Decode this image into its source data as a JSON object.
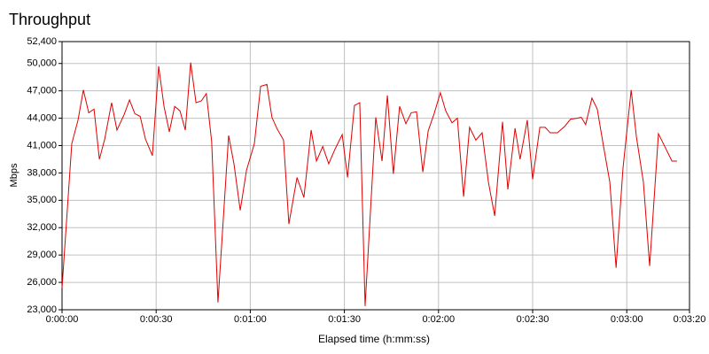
{
  "chart_data": {
    "type": "line",
    "title": "Throughput",
    "x_label": "Elapsed time (h:mm:ss)",
    "y_label": "Mbps",
    "x": [
      0,
      3.1,
      5.1,
      6.8,
      8.5,
      10.2,
      11.9,
      13.6,
      15.8,
      17.5,
      19.8,
      21.5,
      23.2,
      24.9,
      26.6,
      28.8,
      30.8,
      32.5,
      34.2,
      35.9,
      37.6,
      39.3,
      41.0,
      42.7,
      44.4,
      46.0,
      47.7,
      49.7,
      53.1,
      54.8,
      56.8,
      58.8,
      61.3,
      63.3,
      65.3,
      66.9,
      68.6,
      70.6,
      72.3,
      74.9,
      77.1,
      79.4,
      81.1,
      83.1,
      85.0,
      87.0,
      89.3,
      91.0,
      93.2,
      94.9,
      96.6,
      100.0,
      102.0,
      103.7,
      105.6,
      107.6,
      109.6,
      111.3,
      113.0,
      115.0,
      116.7,
      118.6,
      120.6,
      122.3,
      124.3,
      126.0,
      128.0,
      129.9,
      131.9,
      133.9,
      135.9,
      137.9,
      140.4,
      142.1,
      144.4,
      146.0,
      148.3,
      150.0,
      152.3,
      154.0,
      155.6,
      157.9,
      160.2,
      162.1,
      164.1,
      165.5,
      166.9,
      168.9,
      170.6,
      172.6,
      174.6,
      176.6,
      178.8,
      181.4,
      183.1,
      185.3,
      187.3,
      190.1,
      192.4,
      194.4,
      196.0
    ],
    "values": [
      25400,
      41200,
      43800,
      47100,
      44600,
      45000,
      39500,
      41700,
      45700,
      42700,
      44400,
      46000,
      44500,
      44200,
      41700,
      39900,
      49700,
      45300,
      42500,
      45300,
      44800,
      42700,
      50100,
      45700,
      45900,
      46700,
      41400,
      23800,
      42100,
      39000,
      33900,
      38300,
      41200,
      47500,
      47700,
      44100,
      42800,
      41600,
      32400,
      37500,
      35300,
      42700,
      39300,
      40900,
      39000,
      40600,
      42200,
      37500,
      45400,
      45700,
      23400,
      44100,
      39300,
      46500,
      37900,
      45300,
      43400,
      44600,
      44700,
      38100,
      42600,
      44500,
      46800,
      44800,
      43500,
      44000,
      35400,
      43000,
      41600,
      42400,
      37000,
      33300,
      43600,
      36200,
      42900,
      39500,
      43800,
      37300,
      43000,
      43000,
      42400,
      42400,
      43100,
      43900,
      44000,
      44100,
      43300,
      46200,
      45000,
      40900,
      37000,
      27600,
      38500,
      47100,
      41900,
      37000,
      27800,
      42300,
      40700,
      39300,
      39300
    ],
    "color": "#e00000",
    "xlim": [
      0,
      200
    ],
    "xticks": [
      {
        "value": 0,
        "label": "0:00:00"
      },
      {
        "value": 30,
        "label": "0:00:30"
      },
      {
        "value": 60,
        "label": "0:01:00"
      },
      {
        "value": 90,
        "label": "0:01:30"
      },
      {
        "value": 120,
        "label": "0:02:00"
      },
      {
        "value": 150,
        "label": "0:02:30"
      },
      {
        "value": 180,
        "label": "0:03:00"
      },
      {
        "value": 200,
        "label": "0:03:20"
      }
    ],
    "ylim": [
      23000,
      52400
    ],
    "yticks": [
      {
        "value": 23000,
        "label": "23,000"
      },
      {
        "value": 26000,
        "label": "26,000"
      },
      {
        "value": 29000,
        "label": "29,000"
      },
      {
        "value": 32000,
        "label": "32,000"
      },
      {
        "value": 35000,
        "label": "35,000"
      },
      {
        "value": 38000,
        "label": "38,000"
      },
      {
        "value": 41000,
        "label": "41,000"
      },
      {
        "value": 44000,
        "label": "44,000"
      },
      {
        "value": 47000,
        "label": "47,000"
      },
      {
        "value": 50000,
        "label": "50,000"
      },
      {
        "value": 52400,
        "label": "52,400"
      }
    ],
    "grid": true
  }
}
